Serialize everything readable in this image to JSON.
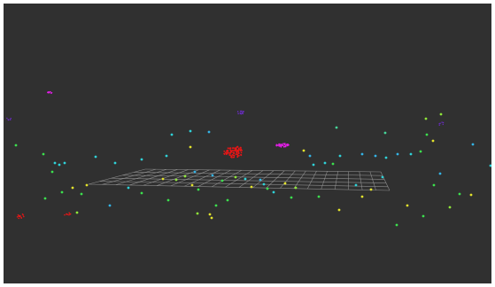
{
  "viewer": {
    "background_color": "#303030",
    "frame_color": "#ffffff",
    "grid_color": "#9c9c9c",
    "cluster_colors": {
      "red": "#e81616",
      "magenta": "#e21ee6",
      "purple": "#6a2cc4"
    },
    "landmark_palette": [
      "#2fd2d8",
      "#3ce04e",
      "#e3e32c",
      "#34b4e6",
      "#8fe83a",
      "#46d69a"
    ],
    "icon": "3d-grid-icon"
  }
}
